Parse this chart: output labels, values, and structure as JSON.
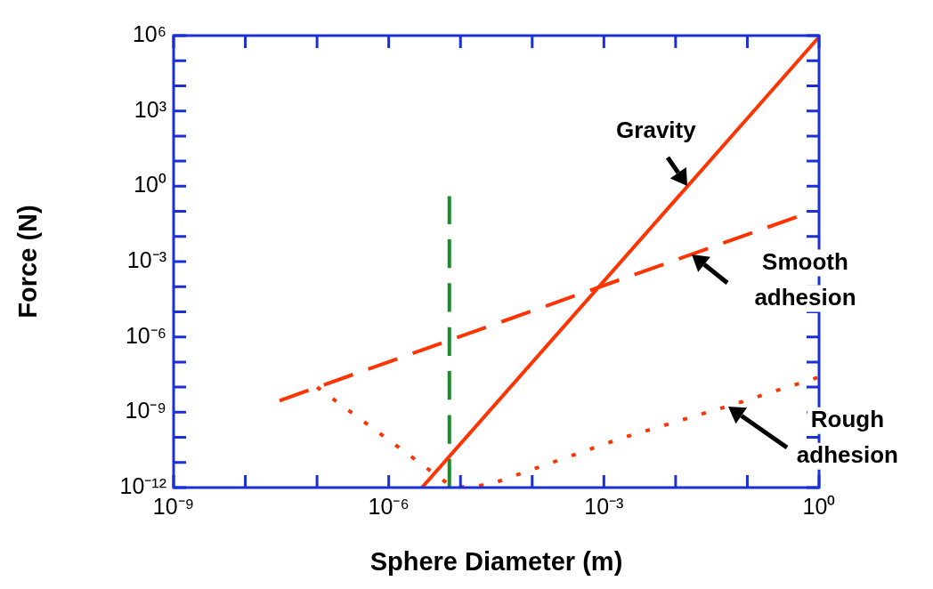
{
  "chart_data": {
    "type": "line",
    "xlabel": "Sphere Diameter (m)",
    "ylabel": "Force (N)",
    "log": "xy",
    "grid": false,
    "legend": false,
    "marker": "none",
    "xlim": [
      1e-09,
      1
    ],
    "ylim": [
      1e-12,
      1000000.0
    ],
    "xticks": [
      {
        "value": 1e-09,
        "label": "10⁻⁹"
      },
      {
        "value": 1e-08,
        "label": null
      },
      {
        "value": 1e-07,
        "label": null
      },
      {
        "value": 1e-06,
        "label": "10⁻⁶"
      },
      {
        "value": 1e-05,
        "label": null
      },
      {
        "value": 0.0001,
        "label": null
      },
      {
        "value": 0.001,
        "label": "10⁻³"
      },
      {
        "value": 0.01,
        "label": null
      },
      {
        "value": 0.1,
        "label": null
      },
      {
        "value": 1,
        "label": "10⁰"
      }
    ],
    "yticks": [
      {
        "value": 1e-12,
        "label": "10⁻¹²"
      },
      {
        "value": 1e-11,
        "label": null
      },
      {
        "value": 1e-10,
        "label": null
      },
      {
        "value": 1e-09,
        "label": "10⁻⁹"
      },
      {
        "value": 1e-08,
        "label": null
      },
      {
        "value": 1e-07,
        "label": null
      },
      {
        "value": 1e-06,
        "label": "10⁻⁶"
      },
      {
        "value": 1e-05,
        "label": null
      },
      {
        "value": 0.0001,
        "label": null
      },
      {
        "value": 0.001,
        "label": "10⁻³"
      },
      {
        "value": 0.01,
        "label": null
      },
      {
        "value": 0.1,
        "label": null
      },
      {
        "value": 1,
        "label": "10⁰"
      },
      {
        "value": 10,
        "label": null
      },
      {
        "value": 100,
        "label": null
      },
      {
        "value": 1000,
        "label": "10³"
      },
      {
        "value": 10000.0,
        "label": null
      },
      {
        "value": 100000.0,
        "label": null
      },
      {
        "value": 1000000.0,
        "label": "10⁶"
      }
    ],
    "series": [
      {
        "color": "#ff3300",
        "line_style": "solid",
        "x": [
          2.9e-06,
          0.97
        ],
        "values": [
          1e-12,
          800000.0
        ]
      },
      {
        "color": "#ff3300",
        "line_style": "dashed",
        "x": [
          3e-08,
          0.49
        ],
        "values": [
          2.9e-09,
          0.06
        ]
      },
      {
        "color": "#ff3300",
        "line_style": "dotted",
        "x": [
          1e-07,
          7.9e-06,
          2.5e-05,
          0.000105,
          0.0018,
          0.052,
          0.95
        ],
        "values": [
          1e-08,
          1e-12,
          1.3e-12,
          5.5e-12,
          9.5e-11,
          1.7e-09,
          2.4e-08
        ]
      },
      {
        "color": "#1a8c2a",
        "line_style": "dashed",
        "x": [
          7e-06,
          7e-06
        ],
        "values": [
          1e-12,
          0.4
        ]
      }
    ],
    "annotations": [
      {
        "text": "Gravity",
        "x": 0.0145,
        "y": 1
      },
      {
        "text": "Smooth adhesion",
        "x": 0.017,
        "y": 0.002
      },
      {
        "text": "Rough adhesion",
        "x": 0.054,
        "y": 1.7e-09
      }
    ]
  }
}
